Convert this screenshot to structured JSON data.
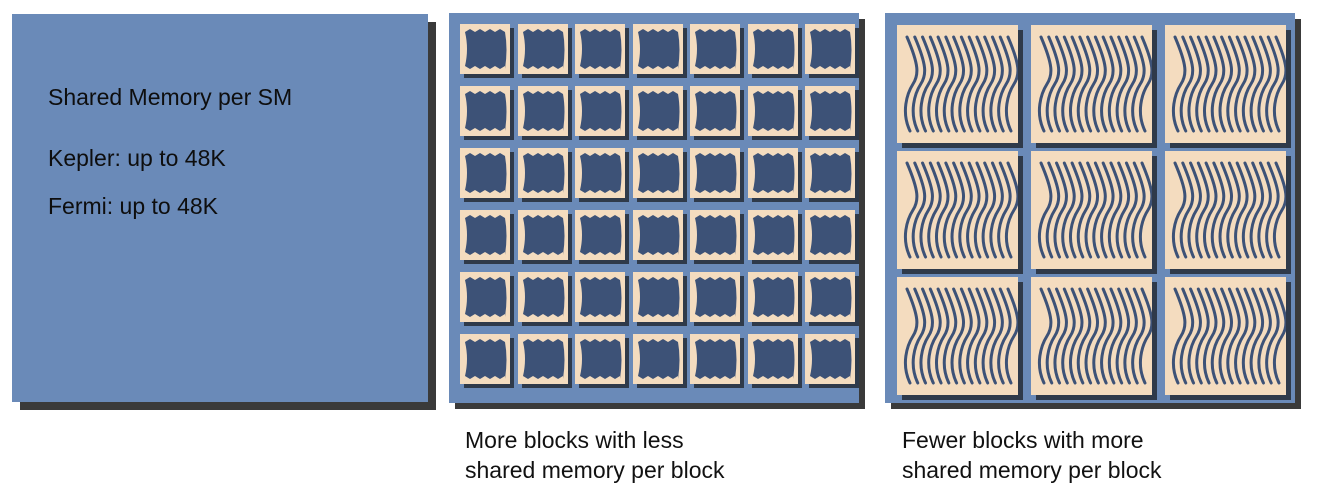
{
  "left_panel": {
    "title": "Shared Memory per SM",
    "line1": "Kepler: up to 48K",
    "line2": "Fermi: up to 48K"
  },
  "middle_panel": {
    "grid_rows": 6,
    "grid_cols": 7,
    "caption_line1": "More blocks with less",
    "caption_line2": "shared memory per block"
  },
  "right_panel": {
    "grid_rows": 3,
    "grid_cols": 3,
    "caption_line1": "Fewer blocks with more",
    "caption_line2": "shared memory per block"
  },
  "colors": {
    "panel_blue": "#6a8ab8",
    "tile_cream": "#f4dcbf",
    "dark_navy": "#3d5277",
    "shadow": "#3a3a3a"
  }
}
